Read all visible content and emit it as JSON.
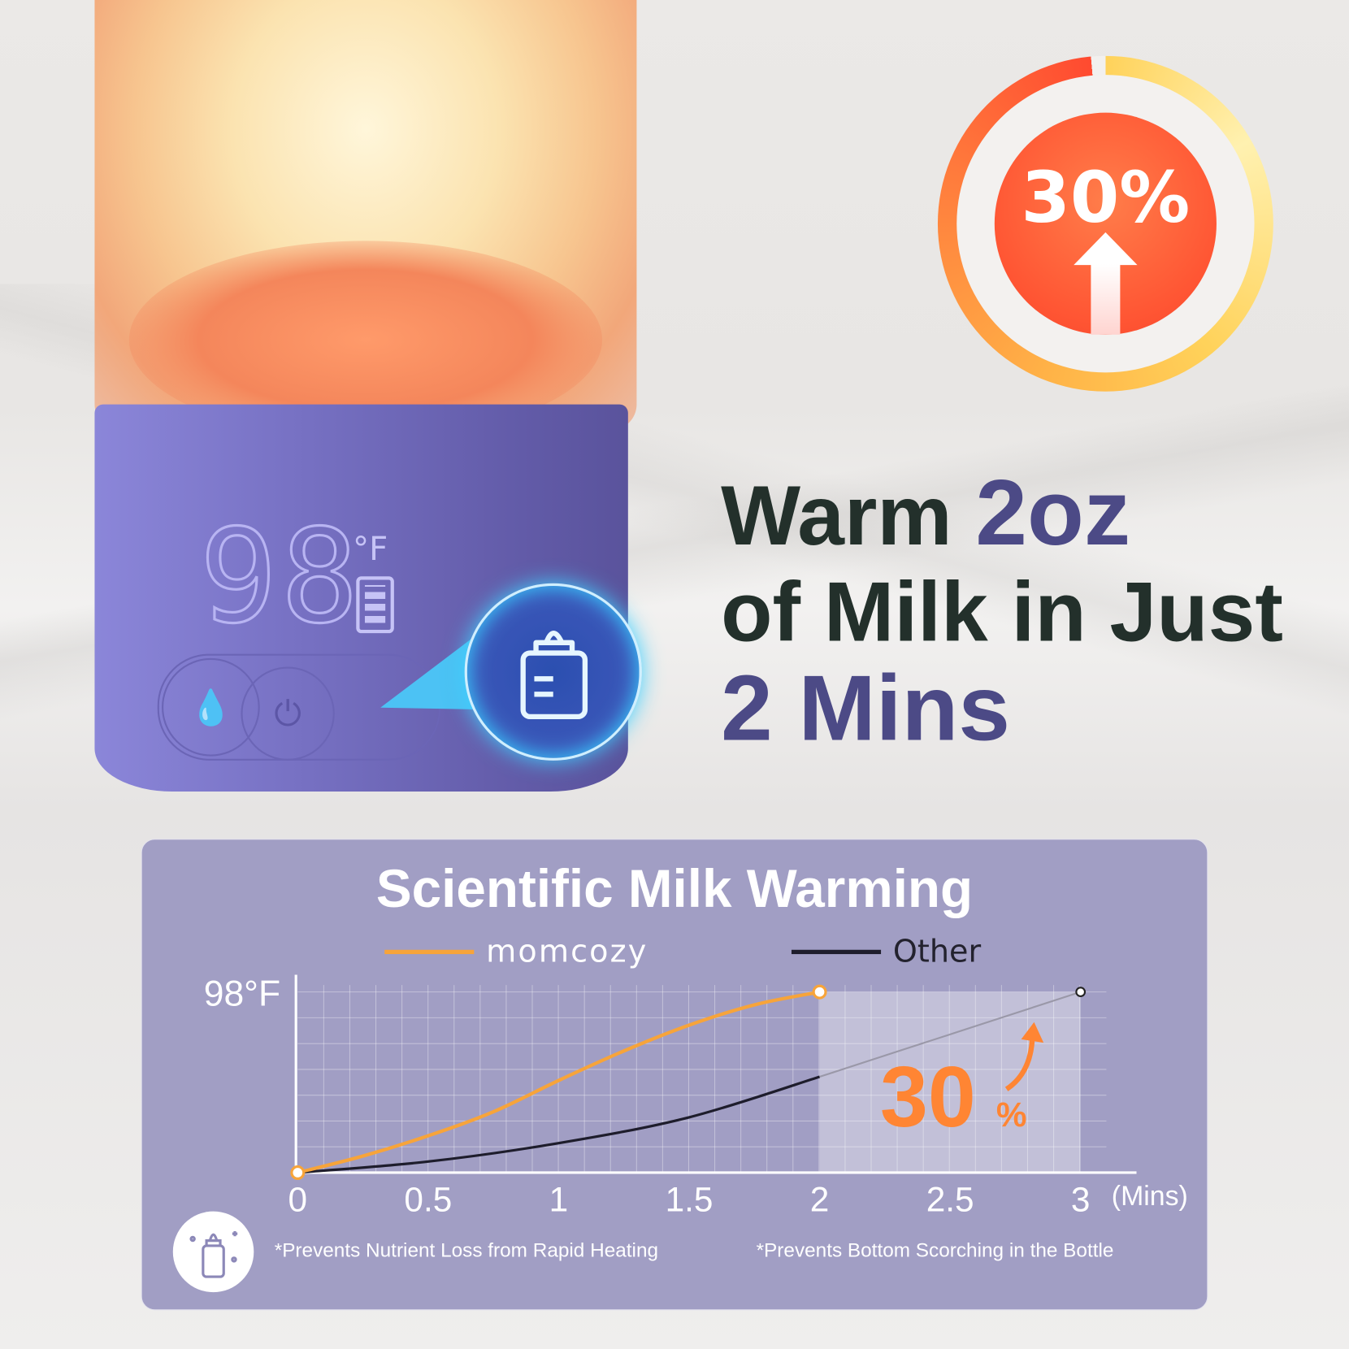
{
  "product": {
    "display_temp": "98",
    "display_unit": "°F"
  },
  "badge": {
    "text": "30%"
  },
  "headline": {
    "line1_a": "Warm ",
    "line1_b": "2oz",
    "line2": "of Milk in Just",
    "line3": "2 Mins"
  },
  "chart_data": {
    "type": "line",
    "title": "Scientific Milk Warming",
    "xlabel": "(Mins)",
    "ylabel": "",
    "x_ticks": [
      "0",
      "0.5",
      "1",
      "1.5",
      "2",
      "2.5",
      "3"
    ],
    "y_ticks": [
      "0",
      "98°F"
    ],
    "xlim": [
      0,
      3
    ],
    "ylim": [
      0,
      98
    ],
    "grid": true,
    "legend_placement": "top",
    "series": [
      {
        "name": "momcozy",
        "color": "#f7a43a",
        "x": [
          0,
          0.25,
          0.5,
          0.75,
          1,
          1.25,
          1.5,
          1.75,
          2
        ],
        "y": [
          0,
          9,
          20,
          33,
          50,
          66,
          80,
          91,
          98
        ]
      },
      {
        "name": "Other",
        "color": "#1e1d2c",
        "x": [
          0,
          0.5,
          1,
          1.5,
          2,
          2.5,
          3
        ],
        "y": [
          0,
          6,
          16,
          30,
          52,
          75,
          98
        ]
      }
    ],
    "annotation": {
      "value": "30",
      "unit": "%",
      "color": "#ff8533"
    },
    "highlight_range": [
      2,
      3
    ]
  },
  "notes": [
    "*Prevents Nutrient Loss from  Rapid Heating",
    "*Prevents Bottom Scorching in the Bottle"
  ]
}
